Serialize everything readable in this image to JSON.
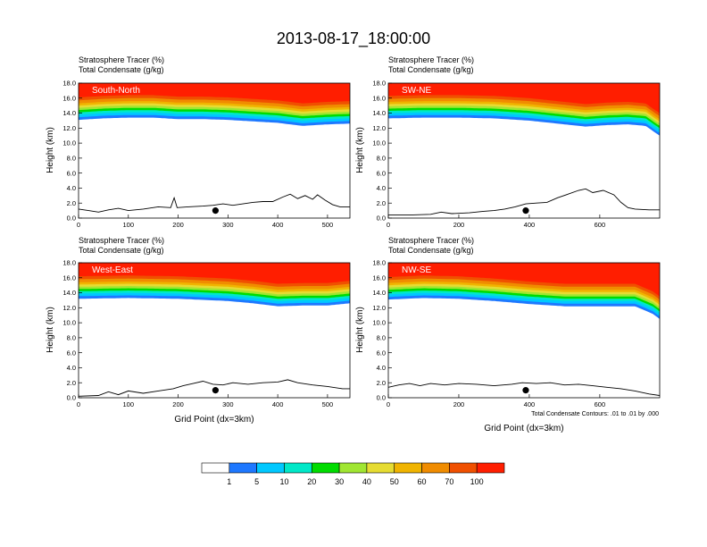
{
  "title": "2013-08-17_18:00:00",
  "colors": {
    "levels": [
      "#ffffff",
      "#1e78ff",
      "#00c8ff",
      "#00e8c8",
      "#00dc00",
      "#a0e632",
      "#e6dc32",
      "#f0b400",
      "#f08c00",
      "#f05000",
      "#ff1e00"
    ]
  },
  "chart_data": [
    {
      "type": "contour",
      "panel_label": "South-North",
      "subtitle_1": "Stratosphere Tracer   (%)",
      "subtitle_2": "Total Condensate   (g/kg)",
      "ylabel": "Height (km)",
      "xlabel": "",
      "xlim": [
        0,
        545
      ],
      "ylim": [
        0,
        18
      ],
      "xticks": [
        "0",
        "100",
        "200",
        "300",
        "400",
        "500"
      ],
      "yticks": [
        "0.0",
        "2.0",
        "4.0",
        "6.0",
        "8.0",
        "10.0",
        "12.0",
        "14.0",
        "16.0",
        "18.0"
      ],
      "tracer_base_km": [
        [
          0,
          13.1
        ],
        [
          50,
          13.3
        ],
        [
          100,
          13.4
        ],
        [
          150,
          13.4
        ],
        [
          200,
          13.2
        ],
        [
          250,
          13.2
        ],
        [
          300,
          13.1
        ],
        [
          350,
          12.9
        ],
        [
          400,
          12.7
        ],
        [
          450,
          12.3
        ],
        [
          500,
          12.5
        ],
        [
          545,
          12.6
        ]
      ],
      "terrain_km": [
        [
          0,
          1.2
        ],
        [
          20,
          1.0
        ],
        [
          40,
          0.8
        ],
        [
          60,
          1.1
        ],
        [
          80,
          1.3
        ],
        [
          100,
          1.0
        ],
        [
          130,
          1.2
        ],
        [
          160,
          1.5
        ],
        [
          185,
          1.4
        ],
        [
          192,
          2.7
        ],
        [
          198,
          1.4
        ],
        [
          220,
          1.5
        ],
        [
          250,
          1.6
        ],
        [
          270,
          1.7
        ],
        [
          290,
          1.9
        ],
        [
          310,
          1.7
        ],
        [
          330,
          1.9
        ],
        [
          350,
          2.1
        ],
        [
          370,
          2.2
        ],
        [
          390,
          2.2
        ],
        [
          410,
          2.8
        ],
        [
          425,
          3.2
        ],
        [
          440,
          2.6
        ],
        [
          455,
          3.0
        ],
        [
          470,
          2.5
        ],
        [
          480,
          3.1
        ],
        [
          495,
          2.4
        ],
        [
          510,
          1.8
        ],
        [
          525,
          1.5
        ],
        [
          545,
          1.5
        ]
      ],
      "station_point": [
        275,
        1.0
      ]
    },
    {
      "type": "contour",
      "panel_label": "SW-NE",
      "subtitle_1": "Stratosphere Tracer   (%)",
      "subtitle_2": "Total Condensate   (g/kg)",
      "ylabel": "Height (km)",
      "xlabel": "",
      "xlim": [
        0,
        770
      ],
      "ylim": [
        0,
        18
      ],
      "xticks": [
        "0",
        "200",
        "400",
        "600"
      ],
      "yticks": [
        "0.0",
        "2.0",
        "4.0",
        "6.0",
        "8.0",
        "10.0",
        "12.0",
        "14.0",
        "16.0",
        "18.0"
      ],
      "tracer_base_km": [
        [
          0,
          13.3
        ],
        [
          100,
          13.4
        ],
        [
          200,
          13.4
        ],
        [
          300,
          13.3
        ],
        [
          400,
          13.0
        ],
        [
          480,
          12.6
        ],
        [
          560,
          12.2
        ],
        [
          620,
          12.4
        ],
        [
          680,
          12.5
        ],
        [
          730,
          12.3
        ],
        [
          760,
          11.3
        ],
        [
          770,
          11.0
        ]
      ],
      "terrain_km": [
        [
          0,
          0.4
        ],
        [
          60,
          0.4
        ],
        [
          120,
          0.5
        ],
        [
          150,
          0.8
        ],
        [
          180,
          0.6
        ],
        [
          230,
          0.7
        ],
        [
          270,
          0.9
        ],
        [
          300,
          1.0
        ],
        [
          330,
          1.2
        ],
        [
          360,
          1.5
        ],
        [
          390,
          1.9
        ],
        [
          420,
          2.0
        ],
        [
          450,
          2.1
        ],
        [
          480,
          2.7
        ],
        [
          510,
          3.2
        ],
        [
          540,
          3.7
        ],
        [
          560,
          3.9
        ],
        [
          580,
          3.4
        ],
        [
          610,
          3.7
        ],
        [
          640,
          3.1
        ],
        [
          660,
          2.1
        ],
        [
          680,
          1.4
        ],
        [
          700,
          1.2
        ],
        [
          740,
          1.1
        ],
        [
          770,
          1.1
        ]
      ],
      "station_point": [
        390,
        1.0
      ]
    },
    {
      "type": "contour",
      "panel_label": "West-East",
      "subtitle_1": "Stratosphere Tracer   (%)",
      "subtitle_2": "Total Condensate   (g/kg)",
      "ylabel": "Height (km)",
      "xlabel": "Grid Point (dx=3km)",
      "xlim": [
        0,
        545
      ],
      "ylim": [
        0,
        18
      ],
      "xticks": [
        "0",
        "100",
        "200",
        "300",
        "400",
        "500"
      ],
      "yticks": [
        "0.0",
        "2.0",
        "4.0",
        "6.0",
        "8.0",
        "10.0",
        "12.0",
        "14.0",
        "16.0",
        "18.0"
      ],
      "tracer_base_km": [
        [
          0,
          13.2
        ],
        [
          100,
          13.3
        ],
        [
          200,
          13.2
        ],
        [
          300,
          12.9
        ],
        [
          350,
          12.6
        ],
        [
          400,
          12.2
        ],
        [
          450,
          12.3
        ],
        [
          500,
          12.3
        ],
        [
          545,
          12.6
        ]
      ],
      "terrain_km": [
        [
          0,
          0.2
        ],
        [
          40,
          0.3
        ],
        [
          60,
          0.8
        ],
        [
          80,
          0.4
        ],
        [
          100,
          0.9
        ],
        [
          130,
          0.6
        ],
        [
          160,
          0.9
        ],
        [
          190,
          1.2
        ],
        [
          210,
          1.6
        ],
        [
          230,
          1.9
        ],
        [
          250,
          2.2
        ],
        [
          270,
          1.8
        ],
        [
          290,
          1.7
        ],
        [
          310,
          2.0
        ],
        [
          340,
          1.8
        ],
        [
          370,
          2.0
        ],
        [
          400,
          2.1
        ],
        [
          420,
          2.4
        ],
        [
          440,
          2.0
        ],
        [
          470,
          1.7
        ],
        [
          500,
          1.5
        ],
        [
          530,
          1.2
        ],
        [
          545,
          1.2
        ]
      ],
      "station_point": [
        275,
        1.0
      ]
    },
    {
      "type": "contour",
      "panel_label": "NW-SE",
      "subtitle_1": "Stratosphere Tracer   (%)",
      "subtitle_2": "Total Condensate   (g/kg)",
      "ylabel": "Height (km)",
      "xlabel": "Grid Point (dx=3km)",
      "xlim": [
        0,
        770
      ],
      "ylim": [
        0,
        18
      ],
      "xticks": [
        "0",
        "200",
        "400",
        "600"
      ],
      "yticks": [
        "0.0",
        "2.0",
        "4.0",
        "6.0",
        "8.0",
        "10.0",
        "12.0",
        "14.0",
        "16.0",
        "18.0"
      ],
      "tracer_base_km": [
        [
          0,
          13.1
        ],
        [
          100,
          13.3
        ],
        [
          200,
          13.2
        ],
        [
          300,
          12.9
        ],
        [
          400,
          12.5
        ],
        [
          500,
          12.2
        ],
        [
          600,
          12.2
        ],
        [
          700,
          12.2
        ],
        [
          750,
          11.2
        ],
        [
          770,
          10.5
        ]
      ],
      "terrain_km": [
        [
          0,
          1.4
        ],
        [
          30,
          1.7
        ],
        [
          60,
          1.9
        ],
        [
          90,
          1.6
        ],
        [
          120,
          1.9
        ],
        [
          160,
          1.7
        ],
        [
          200,
          1.9
        ],
        [
          250,
          1.8
        ],
        [
          300,
          1.6
        ],
        [
          350,
          1.8
        ],
        [
          380,
          2.0
        ],
        [
          420,
          1.9
        ],
        [
          460,
          2.0
        ],
        [
          500,
          1.7
        ],
        [
          540,
          1.8
        ],
        [
          580,
          1.6
        ],
        [
          620,
          1.4
        ],
        [
          660,
          1.2
        ],
        [
          700,
          0.9
        ],
        [
          740,
          0.5
        ],
        [
          770,
          0.3
        ]
      ],
      "station_point": [
        390,
        1.0
      ]
    }
  ],
  "condensate_note": "Total Condensate Contours: .01 to .01 by .000",
  "colorbar": {
    "labels": [
      "1",
      "5",
      "10",
      "20",
      "30",
      "40",
      "50",
      "60",
      "70",
      "100"
    ]
  }
}
